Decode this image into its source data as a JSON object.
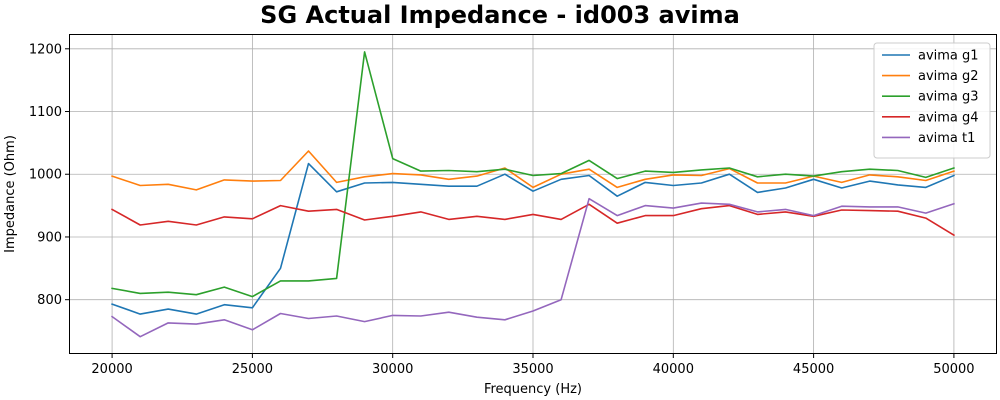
{
  "chart_data": {
    "type": "line",
    "title": "SG Actual Impedance - id003 avima",
    "xlabel": "Frequency (Hz)",
    "ylabel": "Impedance (Ohm)",
    "xlim": [
      18500,
      51500
    ],
    "ylim": [
      715,
      1222
    ],
    "grid": true,
    "legend_position": "top-right",
    "x_ticks": [
      20000,
      25000,
      30000,
      35000,
      40000,
      45000,
      50000
    ],
    "y_ticks": [
      800,
      900,
      1000,
      1100,
      1200
    ],
    "x": [
      20000,
      21000,
      22000,
      23000,
      24000,
      25000,
      26000,
      27000,
      28000,
      29000,
      30000,
      31000,
      32000,
      33000,
      34000,
      35000,
      36000,
      37000,
      38000,
      39000,
      40000,
      41000,
      42000,
      43000,
      44000,
      45000,
      46000,
      47000,
      48000,
      49000,
      50000
    ],
    "series": [
      {
        "name": "avima g1",
        "color": "#1f77b4",
        "values": [
          793,
          777,
          785,
          777,
          792,
          787,
          850,
          1017,
          972,
          986,
          987,
          984,
          981,
          981,
          1000,
          973,
          992,
          998,
          965,
          987,
          982,
          986,
          1000,
          971,
          978,
          992,
          978,
          989,
          983,
          979,
          998
        ]
      },
      {
        "name": "avima g2",
        "color": "#ff7f0e",
        "values": [
          997,
          982,
          984,
          975,
          991,
          989,
          990,
          1037,
          987,
          996,
          1001,
          999,
          992,
          997,
          1010,
          979,
          1000,
          1008,
          979,
          992,
          999,
          998,
          1009,
          986,
          986,
          997,
          987,
          999,
          996,
          990,
          1005
        ]
      },
      {
        "name": "avima g3",
        "color": "#2ca02c",
        "values": [
          818,
          810,
          812,
          808,
          820,
          805,
          830,
          830,
          834,
          1195,
          1025,
          1005,
          1006,
          1004,
          1008,
          998,
          1001,
          1022,
          993,
          1005,
          1003,
          1007,
          1010,
          996,
          1000,
          997,
          1004,
          1008,
          1006,
          995,
          1010
        ]
      },
      {
        "name": "avima g4",
        "color": "#d62728",
        "values": [
          944,
          919,
          925,
          919,
          932,
          929,
          950,
          941,
          944,
          927,
          933,
          940,
          928,
          933,
          928,
          936,
          928,
          952,
          922,
          934,
          934,
          945,
          950,
          936,
          940,
          933,
          943,
          942,
          941,
          930,
          903
        ]
      },
      {
        "name": "avima t1",
        "color": "#9467bd",
        "values": [
          773,
          741,
          763,
          761,
          768,
          752,
          778,
          770,
          774,
          765,
          775,
          774,
          780,
          772,
          768,
          782,
          800,
          961,
          934,
          950,
          946,
          954,
          952,
          940,
          944,
          934,
          949,
          948,
          948,
          938,
          953
        ]
      }
    ]
  }
}
